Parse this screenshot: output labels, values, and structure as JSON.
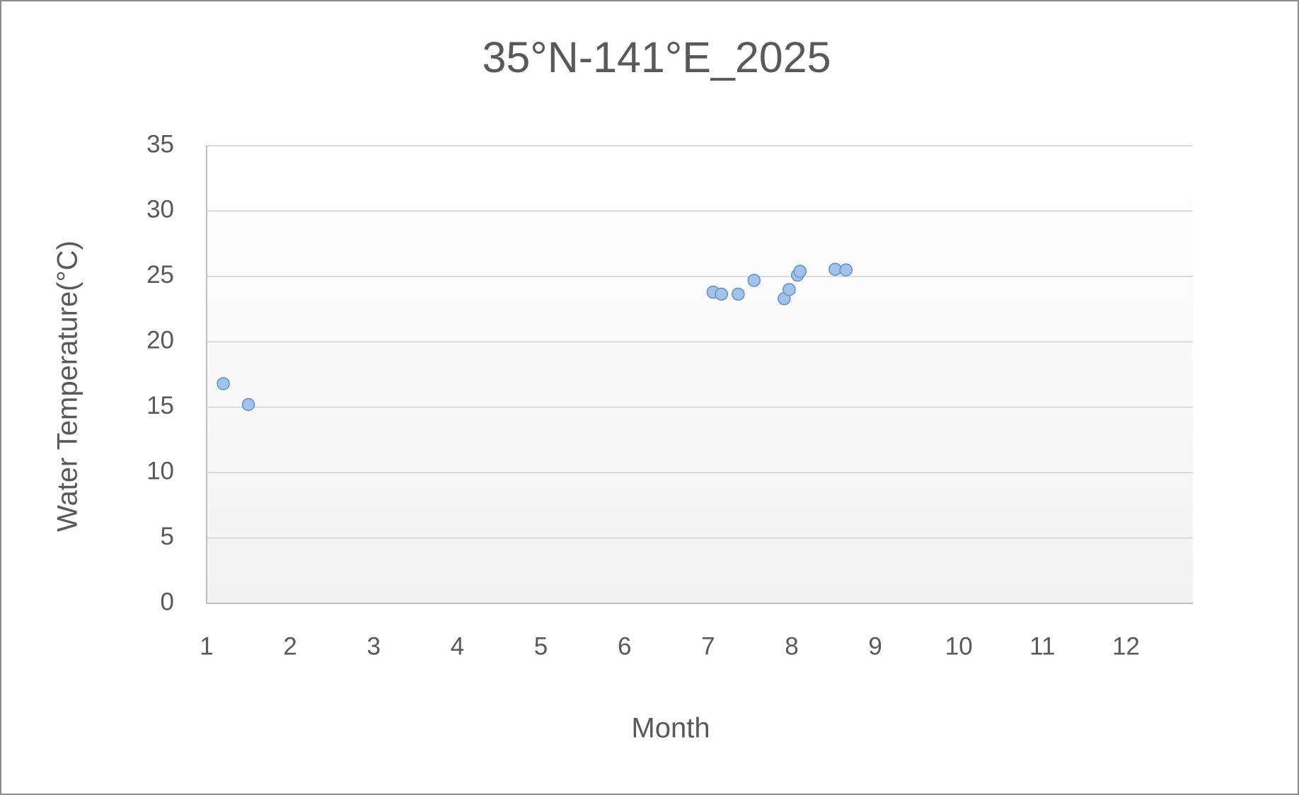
{
  "chart_data": {
    "type": "scatter",
    "title": "35°N-141°E_2025",
    "x_label": "Month",
    "y_label": "Water Temperature(°C)",
    "x": [
      1.2,
      1.5,
      7.06,
      7.16,
      7.36,
      7.55,
      7.91,
      7.97,
      8.07,
      8.1,
      8.52,
      8.65
    ],
    "values": [
      16.8,
      15.2,
      23.8,
      23.65,
      23.65,
      24.7,
      23.3,
      24.0,
      25.1,
      25.4,
      25.55,
      25.5
    ],
    "color": "#a4c2e8",
    "xlim": [
      1,
      12.8
    ],
    "xticks": [
      1,
      2,
      3,
      4,
      5,
      6,
      7,
      8,
      9,
      10,
      11,
      12
    ],
    "ylim": [
      0,
      35
    ],
    "yticks": [
      0,
      5,
      10,
      15,
      20,
      25,
      30,
      35
    ],
    "grid": true
  }
}
